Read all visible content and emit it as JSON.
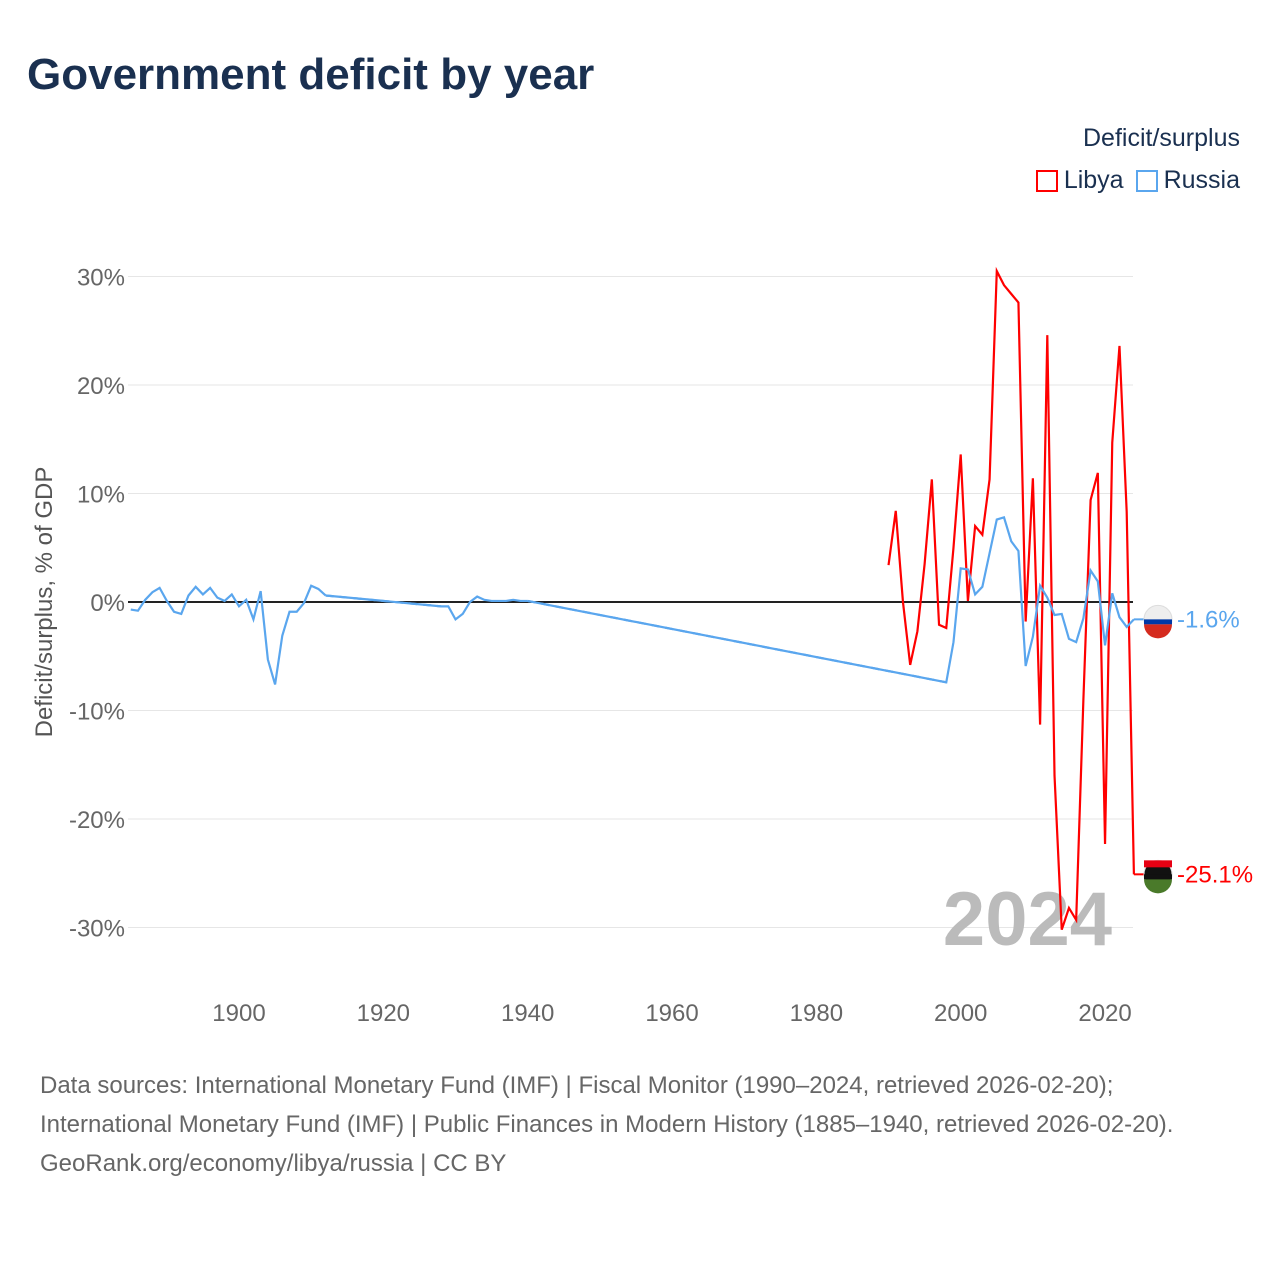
{
  "title": "Government deficit by year",
  "legend": {
    "title": "Deficit/surplus",
    "items": [
      {
        "name": "Libya",
        "color": "#ff0000"
      },
      {
        "name": "Russia",
        "color": "#5aa6ee"
      }
    ]
  },
  "footer": {
    "sources": "Data sources: International Monetary Fund (IMF) | Fiscal Monitor (1990–2024, retrieved 2026-02-20); International Monetary Fund (IMF) | Public Finances in Modern History (1885–1940, retrieved 2026-02-20).",
    "credit": "GeoRank.org/economy/libya/russia | CC BY"
  },
  "chart_data": {
    "type": "line",
    "ylabel": "Deficit/surplus, % of GDP",
    "xlim": [
      1885,
      2024
    ],
    "ylim": [
      -35,
      32
    ],
    "x_ticks": [
      1900,
      1920,
      1940,
      1960,
      1980,
      2000,
      2020
    ],
    "y_ticks": [
      30,
      20,
      10,
      0,
      -10,
      -20,
      -30
    ],
    "y_tick_labels": [
      "30%",
      "20%",
      "10%",
      "0%",
      "-10%",
      "-20%",
      "-30%"
    ],
    "watermark_year": "2024",
    "series": [
      {
        "name": "Libya",
        "color": "#ff0000",
        "end_label": "-25.1%",
        "points": [
          [
            1990,
            3.4
          ],
          [
            1991,
            8.4
          ],
          [
            1992,
            0
          ],
          [
            1993,
            -5.8
          ],
          [
            1994,
            -2.7
          ],
          [
            1995,
            3.5
          ],
          [
            1996,
            11.3
          ],
          [
            1997,
            -2.1
          ],
          [
            1998,
            -2.4
          ],
          [
            1999,
            5
          ],
          [
            2000,
            13.6
          ],
          [
            2001,
            0.1
          ],
          [
            2002,
            7.0
          ],
          [
            2003,
            6.2
          ],
          [
            2004,
            11.3
          ],
          [
            2005,
            30.5
          ],
          [
            2006,
            29.2
          ],
          [
            2007,
            28.4
          ],
          [
            2008,
            27.6
          ],
          [
            2009,
            -1.8
          ],
          [
            2010,
            11.4
          ],
          [
            2011,
            -11.3
          ],
          [
            2012,
            24.6
          ],
          [
            2013,
            -16
          ],
          [
            2014,
            -30.2
          ],
          [
            2015,
            -28.2
          ],
          [
            2016,
            -29.3
          ],
          [
            2017,
            -9
          ],
          [
            2018,
            9.4
          ],
          [
            2019,
            11.9
          ],
          [
            2020,
            -22.3
          ],
          [
            2021,
            14.7
          ],
          [
            2022,
            23.6
          ],
          [
            2023,
            8.3
          ],
          [
            2024,
            -25.1
          ]
        ]
      },
      {
        "name": "Russia",
        "color": "#5aa6ee",
        "end_label": "-1.6%",
        "points": [
          [
            1885,
            -0.7
          ],
          [
            1886,
            -0.8
          ],
          [
            1887,
            0.2
          ],
          [
            1888,
            0.9
          ],
          [
            1889,
            1.3
          ],
          [
            1890,
            0.1
          ],
          [
            1891,
            -0.9
          ],
          [
            1892,
            -1.1
          ],
          [
            1893,
            0.6
          ],
          [
            1894,
            1.4
          ],
          [
            1895,
            0.7
          ],
          [
            1896,
            1.3
          ],
          [
            1897,
            0.4
          ],
          [
            1898,
            0.1
          ],
          [
            1899,
            0.7
          ],
          [
            1900,
            -0.4
          ],
          [
            1901,
            0.2
          ],
          [
            1902,
            -1.6
          ],
          [
            1903,
            1.0
          ],
          [
            1904,
            -5.3
          ],
          [
            1905,
            -7.6
          ],
          [
            1906,
            -3.1
          ],
          [
            1907,
            -0.9
          ],
          [
            1908,
            -0.9
          ],
          [
            1909,
            -0.1
          ],
          [
            1910,
            1.5
          ],
          [
            1911,
            1.2
          ],
          [
            1912,
            0.6
          ],
          [
            1928,
            -0.4
          ],
          [
            1929,
            -0.4
          ],
          [
            1930,
            -1.6
          ],
          [
            1931,
            -1.1
          ],
          [
            1932,
            0
          ],
          [
            1933,
            0.5
          ],
          [
            1934,
            0.2
          ],
          [
            1935,
            0.1
          ],
          [
            1936,
            0.1
          ],
          [
            1937,
            0.1
          ],
          [
            1938,
            0.2
          ],
          [
            1939,
            0.1
          ],
          [
            1940,
            0.1
          ],
          [
            1998,
            -7.4
          ],
          [
            1999,
            -3.7
          ],
          [
            2000,
            3.1
          ],
          [
            2001,
            3.0
          ],
          [
            2002,
            0.7
          ],
          [
            2003,
            1.4
          ],
          [
            2004,
            4.5
          ],
          [
            2005,
            7.6
          ],
          [
            2006,
            7.8
          ],
          [
            2007,
            5.6
          ],
          [
            2008,
            4.7
          ],
          [
            2009,
            -5.9
          ],
          [
            2010,
            -3.2
          ],
          [
            2011,
            1.5
          ],
          [
            2012,
            0.4
          ],
          [
            2013,
            -1.2
          ],
          [
            2014,
            -1.1
          ],
          [
            2015,
            -3.4
          ],
          [
            2016,
            -3.7
          ],
          [
            2017,
            -1.5
          ],
          [
            2018,
            2.9
          ],
          [
            2019,
            1.9
          ],
          [
            2020,
            -4.0
          ],
          [
            2021,
            0.8
          ],
          [
            2022,
            -1.4
          ],
          [
            2023,
            -2.3
          ],
          [
            2024,
            -1.6
          ]
        ]
      }
    ]
  }
}
